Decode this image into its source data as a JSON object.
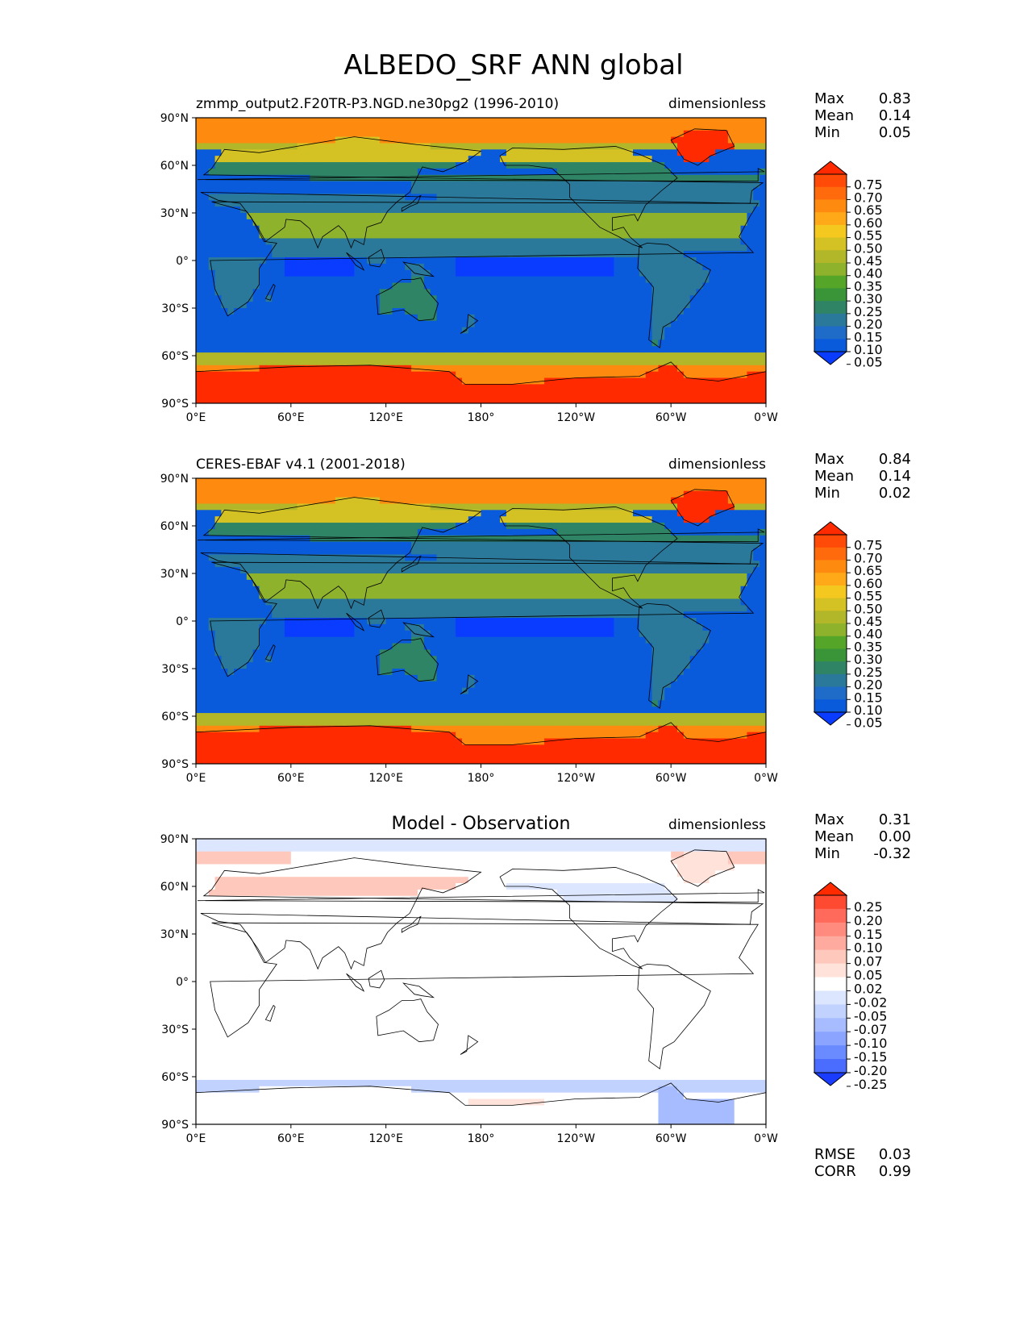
{
  "title": "ALBEDO_SRF ANN global",
  "lat_ticks": [
    "90°N",
    "60°N",
    "30°N",
    "0°",
    "30°S",
    "60°S",
    "90°S"
  ],
  "lon_ticks": [
    "0°E",
    "60°E",
    "120°E",
    "180°",
    "120°W",
    "60°W",
    "0°W"
  ],
  "panels": [
    {
      "left_title": "zmmp_output2.F20TR-P3.NGD.ne30pg2 (1996-2010)",
      "center_title": "",
      "units": "dimensionless",
      "stats": [
        {
          "label": "Max",
          "value": "0.83"
        },
        {
          "label": "Mean",
          "value": "0.14"
        },
        {
          "label": "Min",
          "value": "0.05"
        }
      ],
      "extra_stats": [],
      "colorbar": {
        "ticks": [
          "0.75",
          "0.70",
          "0.65",
          "0.60",
          "0.55",
          "0.50",
          "0.45",
          "0.40",
          "0.35",
          "0.30",
          "0.25",
          "0.20",
          "0.15",
          "0.10",
          "0.05"
        ],
        "colors": [
          "#ff2a00",
          "#ff4a08",
          "#ff6a0c",
          "#ff8a10",
          "#ffa818",
          "#f5c820",
          "#d4c224",
          "#b2b629",
          "#8fb22c",
          "#55a628",
          "#3a9438",
          "#2f8466",
          "#2a789a",
          "#1f6cc8",
          "#0a5adc",
          "#0a3cff"
        ]
      },
      "field": "abs"
    },
    {
      "left_title": "CERES-EBAF v4.1 (2001-2018)",
      "center_title": "",
      "units": "dimensionless",
      "stats": [
        {
          "label": "Max",
          "value": "0.84"
        },
        {
          "label": "Mean",
          "value": "0.14"
        },
        {
          "label": "Min",
          "value": "0.02"
        }
      ],
      "extra_stats": [],
      "colorbar": {
        "ticks": [
          "0.75",
          "0.70",
          "0.65",
          "0.60",
          "0.55",
          "0.50",
          "0.45",
          "0.40",
          "0.35",
          "0.30",
          "0.25",
          "0.20",
          "0.15",
          "0.10",
          "0.05"
        ],
        "colors": [
          "#ff2a00",
          "#ff4a08",
          "#ff6a0c",
          "#ff8a10",
          "#ffa818",
          "#f5c820",
          "#d4c224",
          "#b2b629",
          "#8fb22c",
          "#55a628",
          "#3a9438",
          "#2f8466",
          "#2a789a",
          "#1f6cc8",
          "#0a5adc",
          "#0a3cff"
        ]
      },
      "field": "abs"
    },
    {
      "left_title": "",
      "center_title": "Model - Observation",
      "units": "dimensionless",
      "stats": [
        {
          "label": "Max",
          "value": "0.31"
        },
        {
          "label": "Mean",
          "value": "0.00"
        },
        {
          "label": "Min",
          "value": "-0.32"
        }
      ],
      "extra_stats": [
        {
          "label": "RMSE",
          "value": "0.03"
        },
        {
          "label": "CORR",
          "value": "0.99"
        }
      ],
      "colorbar": {
        "ticks": [
          "0.25",
          "0.20",
          "0.15",
          "0.10",
          "0.07",
          "0.05",
          "0.02",
          "-0.02",
          "-0.05",
          "-0.07",
          "-0.10",
          "-0.15",
          "-0.20",
          "-0.25"
        ],
        "colors": [
          "#ff2a00",
          "#ff4a32",
          "#ff6a5a",
          "#ff8a7e",
          "#ffaa9e",
          "#ffc8bc",
          "#ffe2da",
          "#ffffff",
          "#dde6ff",
          "#c2d2ff",
          "#a6bcff",
          "#8aa4ff",
          "#6a8aff",
          "#4a6cff",
          "#1a3cff"
        ]
      },
      "field": "diff"
    }
  ]
}
